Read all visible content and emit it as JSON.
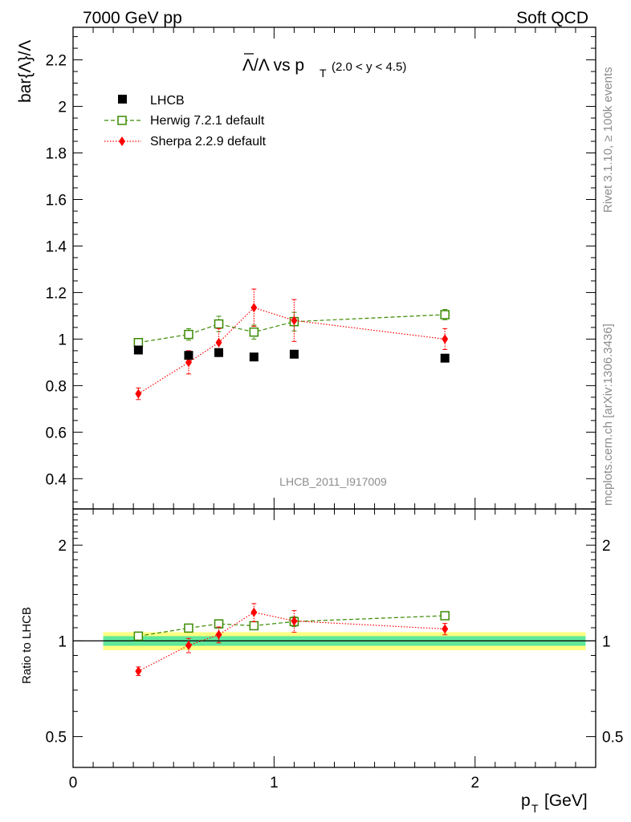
{
  "header": {
    "left": "7000 GeV pp",
    "right": "Soft QCD"
  },
  "side_labels": {
    "rivet": "Rivet 3.1.10, ≥ 100k events",
    "mcplots": "mcplots.cern.ch [arXiv:1306.3436]"
  },
  "watermark": "LHCB_2011_I917009",
  "colors": {
    "data": "#000000",
    "herwig": "#3a8a00",
    "sherpa": "#ff0000",
    "band_inner": "#5fe89a",
    "band_outer": "#ffff80"
  },
  "chart_data": [
    {
      "type": "scatter",
      "title_main": "Λ/Λ vs p",
      "title_sub": "T",
      "title_range": "(2.0 < y < 4.5)",
      "ylabel": "bar{Λ}/Λ",
      "xlim": [
        0,
        2.6
      ],
      "ylim": [
        0.27,
        2.34
      ],
      "y_ticks": [
        0.4,
        0.6,
        0.8,
        1,
        1.2,
        1.4,
        1.6,
        1.8,
        2,
        2.2
      ],
      "y_tick_labels": [
        "0.4",
        "0.6",
        "0.8",
        "1",
        "1.2",
        "1.4",
        "1.6",
        "1.8",
        "2",
        "2.2"
      ],
      "legend_position": "top-left",
      "series": [
        {
          "name": "LHCB",
          "marker": "filled-square",
          "line": "none",
          "x": [
            0.325,
            0.575,
            0.725,
            0.9,
            1.1,
            1.85
          ],
          "y": [
            0.953,
            0.93,
            0.942,
            0.923,
            0.935,
            0.918
          ],
          "err": [
            0.007,
            0.007,
            0.007,
            0.007,
            0.007,
            0.007
          ]
        },
        {
          "name": "Herwig 7.2.1 default",
          "marker": "open-square",
          "line": "dashed",
          "x": [
            0.325,
            0.575,
            0.725,
            0.9,
            1.1,
            1.85
          ],
          "y": [
            0.985,
            1.02,
            1.065,
            1.03,
            1.075,
            1.105
          ],
          "err": [
            0.012,
            0.025,
            0.033,
            0.03,
            0.04,
            0.022
          ]
        },
        {
          "name": "Sherpa 2.2.9 default",
          "marker": "diamond",
          "line": "dotted",
          "x": [
            0.325,
            0.575,
            0.725,
            0.9,
            1.1,
            1.85
          ],
          "y": [
            0.765,
            0.9,
            0.985,
            1.135,
            1.08,
            1.0
          ],
          "err": [
            0.025,
            0.05,
            0.06,
            0.08,
            0.09,
            0.045
          ]
        }
      ]
    },
    {
      "type": "scatter",
      "ylabel": "Ratio to LHCB",
      "xlabel_main": "p",
      "xlabel_sub": "T",
      "xlabel_unit": "[GeV]",
      "xlim": [
        0,
        2.6
      ],
      "y_scale": "log",
      "ylim": [
        0.4,
        2.6
      ],
      "y_ticks": [
        0.5,
        1,
        2
      ],
      "y_tick_labels": [
        "0.5",
        "1",
        "2"
      ],
      "x_ticks": [
        0,
        1,
        2
      ],
      "x_tick_labels": [
        "0",
        "1",
        "2"
      ],
      "reference_line": 1,
      "band": {
        "x_range": [
          0.15,
          2.55
        ],
        "inner": [
          0.965,
          1.035
        ],
        "outer": [
          0.935,
          1.065
        ]
      },
      "series": [
        {
          "name": "Herwig 7.2.1 default",
          "marker": "open-square",
          "line": "dashed",
          "x": [
            0.325,
            0.575,
            0.725,
            0.9,
            1.1,
            1.85
          ],
          "y": [
            1.035,
            1.097,
            1.131,
            1.116,
            1.15,
            1.2
          ],
          "err": [
            0.012,
            0.025,
            0.033,
            0.03,
            0.04,
            0.022
          ]
        },
        {
          "name": "Sherpa 2.2.9 default",
          "marker": "diamond",
          "line": "dotted",
          "x": [
            0.325,
            0.575,
            0.725,
            0.9,
            1.1,
            1.85
          ],
          "y": [
            0.803,
            0.968,
            1.046,
            1.23,
            1.155,
            1.09
          ],
          "err": [
            0.025,
            0.05,
            0.06,
            0.08,
            0.09,
            0.045
          ]
        }
      ]
    }
  ]
}
